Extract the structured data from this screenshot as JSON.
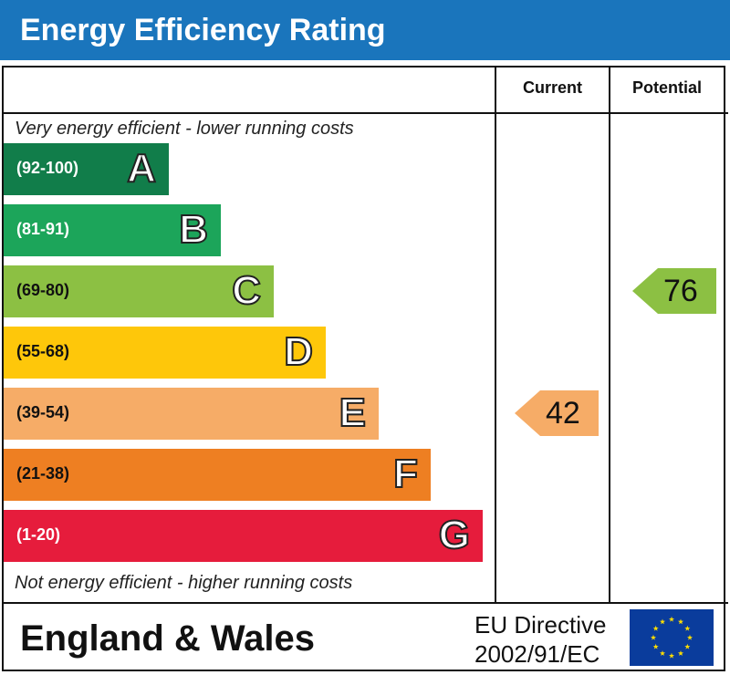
{
  "title": "Energy Efficiency Rating",
  "columns": {
    "current": "Current",
    "potential": "Potential"
  },
  "captions": {
    "top": "Very energy efficient - lower running costs",
    "bottom": "Not energy efficient - higher running costs"
  },
  "colors": {
    "header_bg": "#1a75bc",
    "A": "#117d4a",
    "B": "#1ca55a",
    "C": "#8cc043",
    "D": "#fec70a",
    "E": "#f6ac67",
    "F": "#ee7f22",
    "G": "#e61c3c"
  },
  "footer": {
    "region": "England & Wales",
    "directive_line1": "EU Directive",
    "directive_line2": "2002/91/EC"
  },
  "chart_data": {
    "type": "bar",
    "title": "Energy Efficiency Rating",
    "bands": [
      {
        "letter": "A",
        "range": "(92-100)",
        "min": 92,
        "max": 100
      },
      {
        "letter": "B",
        "range": "(81-91)",
        "min": 81,
        "max": 91
      },
      {
        "letter": "C",
        "range": "(69-80)",
        "min": 69,
        "max": 80
      },
      {
        "letter": "D",
        "range": "(55-68)",
        "min": 55,
        "max": 68
      },
      {
        "letter": "E",
        "range": "(39-54)",
        "min": 39,
        "max": 54
      },
      {
        "letter": "F",
        "range": "(21-38)",
        "min": 21,
        "max": 38
      },
      {
        "letter": "G",
        "range": "(1-20)",
        "min": 1,
        "max": 20
      }
    ],
    "current": {
      "value": 42,
      "band": "E"
    },
    "potential": {
      "value": 76,
      "band": "C"
    }
  }
}
